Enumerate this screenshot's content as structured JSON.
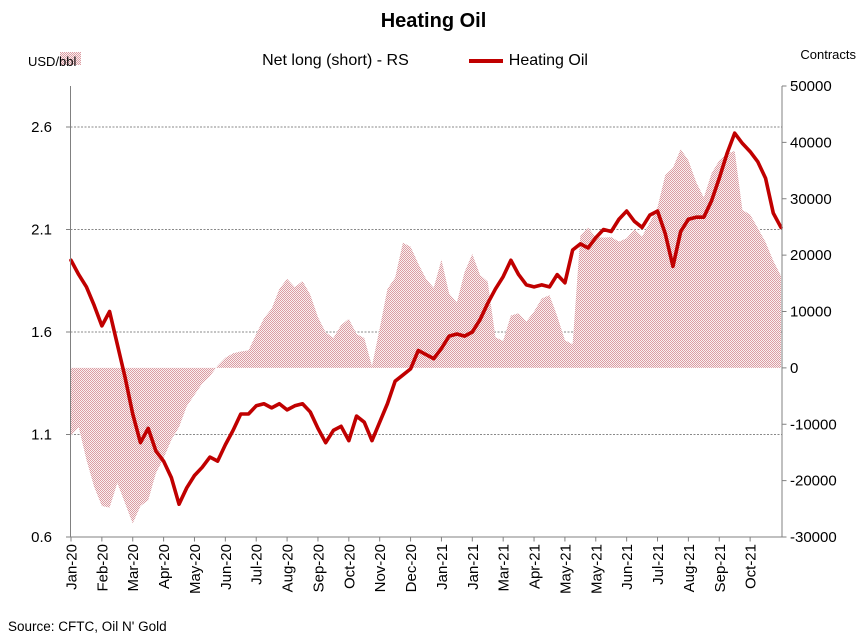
{
  "title": "Heating Oil",
  "source": "Source: CFTC, Oil N' Gold",
  "legend": {
    "items": [
      {
        "label": "Net long (short) - RS",
        "swatch": "pink-dot-pattern"
      },
      {
        "label": "Heating Oil",
        "swatch": "red-line"
      }
    ]
  },
  "colors": {
    "line": "#c00000",
    "area_dot": "#dc9ca3",
    "area_bg": "#f9f0f0",
    "axis": "#808080"
  },
  "chart_data": {
    "type": "combo",
    "title": "Heating Oil",
    "x_label_every_n_points": 4,
    "x_labels": [
      "Jan-20",
      "Feb-20",
      "Mar-20",
      "Apr-20",
      "May-20",
      "Jun-20",
      "Jul-20",
      "Aug-20",
      "Sep-20",
      "Oct-20",
      "Nov-20",
      "Dec-20",
      "Jan-21",
      "Jan-21",
      "Mar-21",
      "Apr-21",
      "May-21",
      "May-21",
      "Jun-21",
      "Jul-21",
      "Aug-21",
      "Sep-21",
      "Oct-21"
    ],
    "left_axis": {
      "title": "USD/bbl",
      "min": 0.6,
      "max": 2.8,
      "ticks": [
        {
          "v": 0.6,
          "label": "0.6"
        },
        {
          "v": 1.1,
          "label": "1.1"
        },
        {
          "v": 1.6,
          "label": "1.6"
        },
        {
          "v": 2.1,
          "label": "2.1"
        },
        {
          "v": 2.6,
          "label": "2.6"
        }
      ]
    },
    "right_axis": {
      "title": "Contracts",
      "min": -30000,
      "max": 50000,
      "ticks": [
        {
          "v": 50000,
          "label": "50000"
        },
        {
          "v": 40000,
          "label": "40000"
        },
        {
          "v": 30000,
          "label": "30000"
        },
        {
          "v": 20000,
          "label": "20000"
        },
        {
          "v": 10000,
          "label": "10000"
        },
        {
          "v": 0,
          "label": "0"
        },
        {
          "v": -10000,
          "label": "-10000"
        },
        {
          "v": -20000,
          "label": "-20000"
        },
        {
          "v": -30000,
          "label": "-30000"
        }
      ]
    },
    "series": [
      {
        "name": "Net long (short) - RS",
        "type": "area",
        "axis": "right",
        "values": [
          -12000,
          -10500,
          -16300,
          -21100,
          -24500,
          -24800,
          -20400,
          -24000,
          -27600,
          -24500,
          -23500,
          -18700,
          -16000,
          -12800,
          -10500,
          -6800,
          -4800,
          -2800,
          -1500,
          400,
          1800,
          2600,
          2900,
          3100,
          6000,
          8800,
          10500,
          14000,
          15800,
          14300,
          15400,
          13000,
          9000,
          6300,
          5300,
          7600,
          8700,
          6000,
          5300,
          300,
          7000,
          14000,
          16000,
          22200,
          21500,
          18500,
          15800,
          14200,
          19200,
          13200,
          11600,
          17000,
          20200,
          16500,
          15300,
          5400,
          4800,
          9300,
          9700,
          8200,
          10000,
          12300,
          12900,
          9200,
          4900,
          4200,
          23500,
          24900,
          23200,
          23100,
          23200,
          22400,
          23000,
          24600,
          23300,
          25800,
          28500,
          34200,
          35500,
          38800,
          36800,
          33000,
          30200,
          34500,
          36800,
          38000,
          38500,
          28000,
          27200,
          24800,
          22300,
          19000,
          16300
        ]
      },
      {
        "name": "Heating Oil",
        "type": "line",
        "axis": "left",
        "values": [
          1.95,
          1.88,
          1.82,
          1.73,
          1.63,
          1.7,
          1.54,
          1.38,
          1.2,
          1.06,
          1.13,
          1.02,
          0.97,
          0.89,
          0.76,
          0.84,
          0.9,
          0.94,
          0.99,
          0.97,
          1.05,
          1.12,
          1.2,
          1.2,
          1.24,
          1.25,
          1.23,
          1.25,
          1.22,
          1.24,
          1.25,
          1.21,
          1.13,
          1.06,
          1.12,
          1.14,
          1.07,
          1.19,
          1.16,
          1.07,
          1.16,
          1.25,
          1.36,
          1.39,
          1.42,
          1.51,
          1.49,
          1.47,
          1.52,
          1.58,
          1.59,
          1.58,
          1.6,
          1.66,
          1.74,
          1.81,
          1.87,
          1.95,
          1.88,
          1.83,
          1.82,
          1.83,
          1.82,
          1.88,
          1.84,
          2.0,
          2.03,
          2.01,
          2.06,
          2.1,
          2.09,
          2.15,
          2.19,
          2.14,
          2.11,
          2.17,
          2.19,
          2.08,
          1.92,
          2.09,
          2.15,
          2.16,
          2.16,
          2.24,
          2.35,
          2.47,
          2.57,
          2.52,
          2.48,
          2.43,
          2.35,
          2.18,
          2.11
        ]
      }
    ],
    "grid": "horizontal-gridlines-at-left-ticks",
    "legend_position": "top-center"
  }
}
